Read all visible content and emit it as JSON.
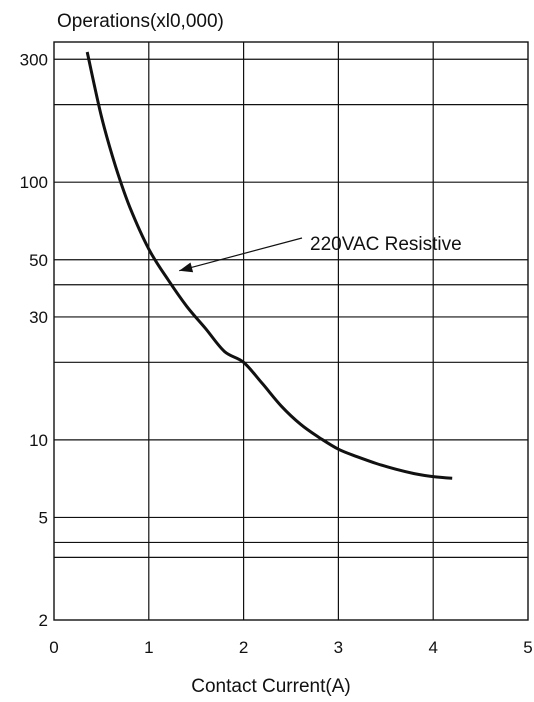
{
  "chart_data": {
    "type": "line",
    "title": "Operations(xl0,000)",
    "xlabel": "Contact Current(A)",
    "ylabel": "",
    "xlim": [
      0,
      5
    ],
    "ylim": [
      2,
      350
    ],
    "y_scale": "log",
    "grid": true,
    "x_ticks": [
      0,
      1,
      2,
      3,
      4,
      5
    ],
    "x_tick_labels": [
      "0",
      "1",
      "2",
      "3",
      "4",
      "5"
    ],
    "y_gridlines": [
      3.5,
      4,
      5,
      10,
      20,
      30,
      40,
      50,
      200,
      300
    ],
    "y_ticks": [
      2,
      5,
      10,
      30,
      50,
      100,
      300
    ],
    "y_tick_labels": [
      "2",
      "5",
      "10",
      "30",
      "50",
      "100",
      "300"
    ],
    "series": [
      {
        "name": "220VAC Resistive",
        "x": [
          0.35,
          0.5,
          0.65,
          0.8,
          1.0,
          1.2,
          1.4,
          1.6,
          1.8,
          2.0,
          2.2,
          2.4,
          2.6,
          2.8,
          3.0,
          3.2,
          3.4,
          3.6,
          3.8,
          4.0,
          4.2
        ],
        "values": [
          320,
          180,
          115,
          80,
          55,
          42,
          33,
          27,
          22,
          20,
          16.5,
          13.5,
          11.5,
          10.2,
          9.2,
          8.6,
          8.1,
          7.7,
          7.4,
          7.2,
          7.1
        ]
      }
    ],
    "annotations": [
      {
        "text": "220VAC Resistive",
        "points_to": {
          "x": 1.3,
          "y": 47
        }
      }
    ]
  }
}
